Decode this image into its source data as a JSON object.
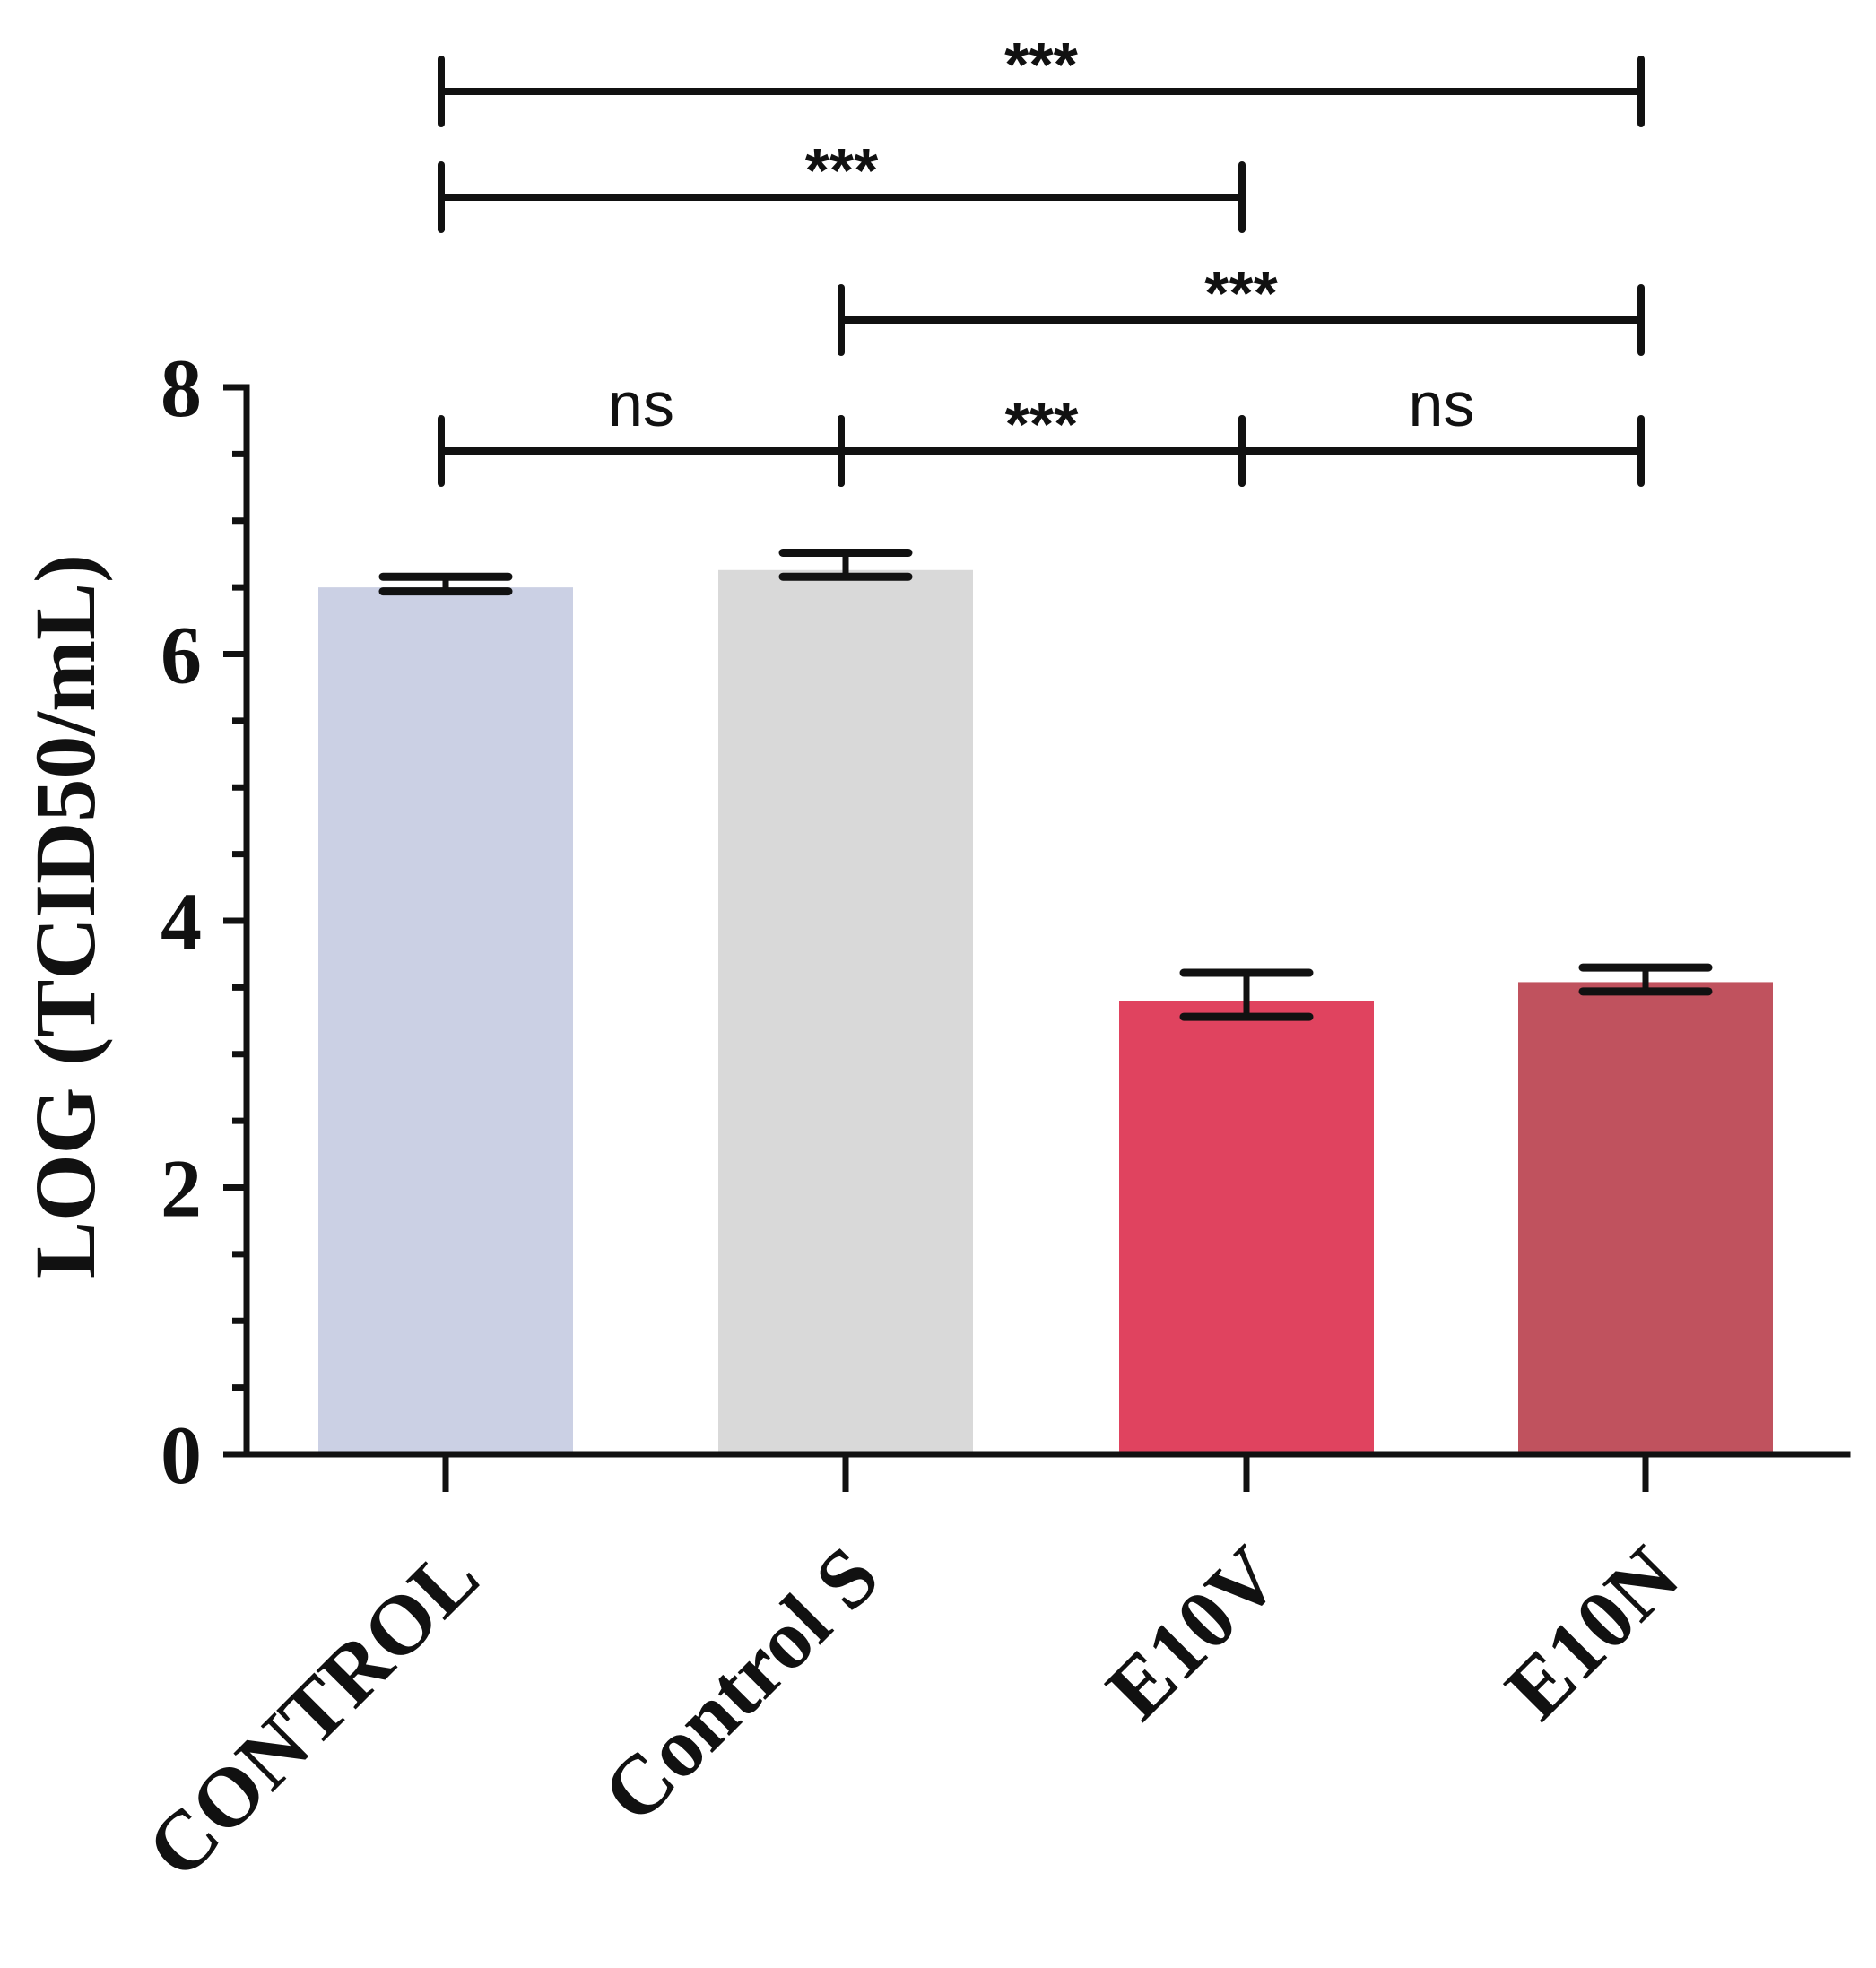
{
  "chart_data": {
    "type": "bar",
    "title": "",
    "xlabel": "",
    "ylabel": "LOG (TCID50/mL)",
    "ylim": [
      0,
      8
    ],
    "yticks": [
      0,
      2,
      4,
      6,
      8
    ],
    "minor_tick_step": 0.5,
    "categories": [
      "CONTROL",
      "Control S",
      "E10V",
      "E10N"
    ],
    "values": [
      6.5,
      6.63,
      3.4,
      3.54
    ],
    "errors": [
      {
        "low": 6.47,
        "high": 6.58
      },
      {
        "low": 6.58,
        "high": 6.76
      },
      {
        "low": 3.28,
        "high": 3.61
      },
      {
        "low": 3.47,
        "high": 3.65
      }
    ],
    "colors": [
      "#cbd0e4",
      "#d9d9d9",
      "#e0435f",
      "#c0525e"
    ],
    "significance": [
      {
        "from": 0,
        "to": 3,
        "label": "***",
        "level": 4
      },
      {
        "from": 0,
        "to": 2,
        "label": "***",
        "level": 3
      },
      {
        "from": 1,
        "to": 3,
        "label": "***",
        "level": 2
      },
      {
        "from": 0,
        "to": 1,
        "label": "ns",
        "level": 1
      },
      {
        "from": 1,
        "to": 2,
        "label": "***",
        "level": 1
      },
      {
        "from": 2,
        "to": 3,
        "label": "ns",
        "level": 1
      }
    ]
  }
}
